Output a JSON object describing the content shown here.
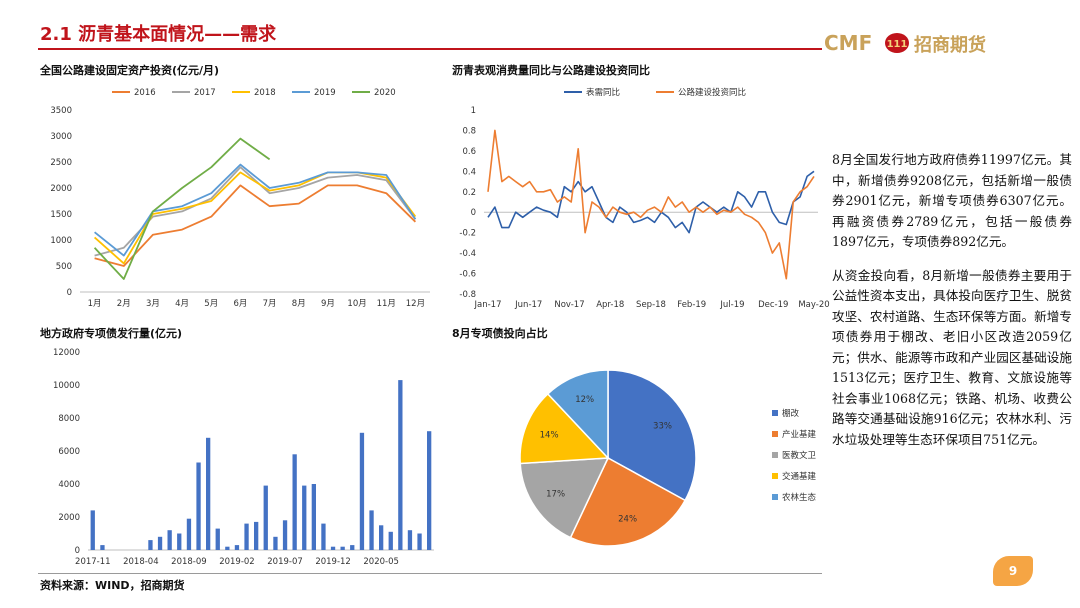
{
  "slide": {
    "title": "2.1 沥青基本面情况——需求",
    "logo_text": "CMF",
    "logo_mark": "111",
    "logo_cn": "招商期货",
    "source": "资料来源：WIND，招商期货",
    "page_number": "9",
    "accent_color": "#c0141b",
    "badge_color": "#f5a544"
  },
  "side_text": {
    "p1": "8月全国发行地方政府债券11997亿元。其中，新增债券9208亿元，包括新增一般债券2901亿元，新增专项债券6307亿元。再融资债券2789亿元，包括一般债券1897亿元，专项债券892亿元。",
    "p2": "从资金投向看，8月新增一般债券主要用于公益性资本支出，具体投向医疗卫生、脱贫攻坚、农村道路、生态环保等方面。新增专项债券用于棚改、老旧小区改造2059亿元；供水、能源等市政和产业园区基础设施1513亿元；医疗卫生、教育、文旅设施等社会事业1068亿元；铁路、机场、收费公路等交通基础设施916亿元；农林水利、污水垃圾处理等生态环保项目751亿元。"
  },
  "chart_data": [
    {
      "id": "highway",
      "type": "line",
      "title": "全国公路建设固定资产投资(亿元/月)",
      "categories": [
        "1月",
        "2月",
        "3月",
        "4月",
        "5月",
        "6月",
        "7月",
        "8月",
        "9月",
        "10月",
        "11月",
        "12月"
      ],
      "ylim": [
        0,
        3500
      ],
      "yticks": [
        "0",
        "500",
        "1000",
        "1500",
        "2000",
        "2500",
        "3000",
        "3500"
      ],
      "legend_position": "top",
      "series": [
        {
          "name": "2016",
          "color": "#ed7d31",
          "values": [
            650,
            500,
            1100,
            1200,
            1450,
            2050,
            1650,
            1700,
            2050,
            2050,
            1900,
            1350
          ]
        },
        {
          "name": "2017",
          "color": "#a5a5a5",
          "values": [
            700,
            850,
            1450,
            1550,
            1800,
            2400,
            1900,
            2000,
            2200,
            2250,
            2150,
            1400
          ]
        },
        {
          "name": "2018",
          "color": "#ffc000",
          "values": [
            1050,
            550,
            1500,
            1600,
            1750,
            2300,
            1950,
            2050,
            2300,
            2300,
            2200,
            1450
          ]
        },
        {
          "name": "2019",
          "color": "#5b9bd5",
          "values": [
            1150,
            700,
            1550,
            1650,
            1900,
            2450,
            2000,
            2100,
            2300,
            2300,
            2250,
            1400
          ]
        },
        {
          "name": "2020",
          "color": "#70ad47",
          "values": [
            850,
            250,
            1550,
            2000,
            2400,
            2950,
            2550,
            null,
            null,
            null,
            null,
            null
          ]
        }
      ]
    },
    {
      "id": "yoy",
      "type": "line",
      "title": "沥青表观消费量同比与公路建设投资同比",
      "ylim": [
        -0.8,
        1.0
      ],
      "yticks": [
        "-0.8",
        "-0.6",
        "-0.4",
        "-0.2",
        "0",
        "0.2",
        "0.4",
        "0.6",
        "0.8",
        "1"
      ],
      "xlabels": [
        "Jan-17",
        "Jun-17",
        "Nov-17",
        "Apr-18",
        "Sep-18",
        "Feb-19",
        "Jul-19",
        "Dec-19",
        "May-20"
      ],
      "legend_position": "top",
      "series": [
        {
          "name": "表需同比",
          "color": "#2e5fa9",
          "values": [
            -0.05,
            0.05,
            -0.15,
            -0.15,
            0.0,
            -0.05,
            0.0,
            0.05,
            0.02,
            0.0,
            -0.05,
            0.25,
            0.2,
            0.3,
            0.2,
            0.25,
            0.1,
            -0.05,
            -0.1,
            0.05,
            0.0,
            -0.1,
            -0.08,
            -0.05,
            -0.1,
            0.0,
            -0.05,
            -0.15,
            -0.1,
            -0.2,
            0.05,
            0.1,
            0.05,
            0.0,
            0.05,
            0.0,
            0.2,
            0.15,
            0.05,
            0.2,
            0.2,
            0.0,
            -0.1,
            -0.12,
            0.1,
            0.15,
            0.35,
            0.4
          ]
        },
        {
          "name": "公路建设投资同比",
          "color": "#ed7d31",
          "values": [
            0.2,
            0.8,
            0.3,
            0.35,
            0.3,
            0.25,
            0.3,
            0.2,
            0.2,
            0.22,
            0.1,
            0.15,
            0.1,
            0.62,
            -0.2,
            0.1,
            0.05,
            -0.05,
            0.05,
            0.0,
            -0.02,
            0.0,
            -0.05,
            0.02,
            0.05,
            0.0,
            0.15,
            0.05,
            0.1,
            0.0,
            0.05,
            0.0,
            0.05,
            -0.02,
            0.02,
            0.0,
            0.05,
            -0.02,
            -0.05,
            -0.1,
            -0.2,
            -0.4,
            -0.3,
            -0.65,
            0.1,
            0.2,
            0.25,
            0.35
          ]
        }
      ]
    },
    {
      "id": "bonds",
      "type": "bar",
      "title": "地方政府专项债发行量(亿元)",
      "ylim": [
        0,
        12000
      ],
      "yticks": [
        "0",
        "2000",
        "4000",
        "6000",
        "8000",
        "10000",
        "12000"
      ],
      "xlabels": [
        "2017-11",
        "2018-04",
        "2018-09",
        "2019-02",
        "2019-07",
        "2019-12",
        "2020-05"
      ],
      "color": "#4472c4",
      "values": [
        2400,
        300,
        0,
        0,
        0,
        0,
        600,
        800,
        1200,
        1000,
        1900,
        5300,
        6800,
        1300,
        200,
        300,
        1600,
        1700,
        3900,
        800,
        1800,
        5800,
        3900,
        4000,
        1600,
        200,
        200,
        300,
        7100,
        2400,
        1500,
        1100,
        10300,
        1200,
        1000,
        7200
      ]
    },
    {
      "id": "pie",
      "type": "pie",
      "title": "8月专项债投向占比",
      "legend_position": "right",
      "slices": [
        {
          "label": "棚改",
          "value": 33,
          "text": "33%",
          "color": "#4472c4"
        },
        {
          "label": "产业基建",
          "value": 24,
          "text": "24%",
          "color": "#ed7d31"
        },
        {
          "label": "医教文卫",
          "value": 17,
          "text": "17%",
          "color": "#a5a5a5"
        },
        {
          "label": "交通基建",
          "value": 14,
          "text": "14%",
          "color": "#ffc000"
        },
        {
          "label": "农林生态",
          "value": 12,
          "text": "12%",
          "color": "#5b9bd5"
        }
      ]
    }
  ]
}
